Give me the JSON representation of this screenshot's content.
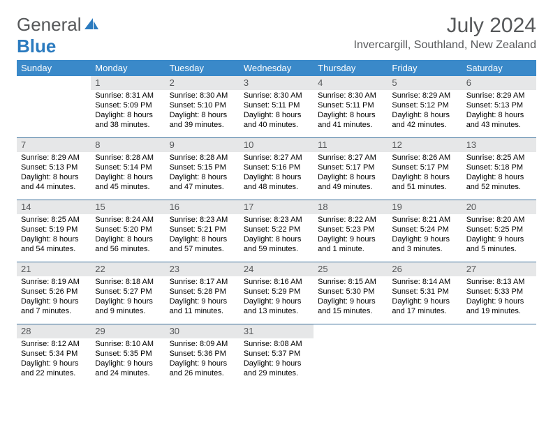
{
  "logo": {
    "left": "General",
    "right": "Blue"
  },
  "title": "July 2024",
  "subtitle": "Invercargill, Southland, New Zealand",
  "day_headers": [
    "Sunday",
    "Monday",
    "Tuesday",
    "Wednesday",
    "Thursday",
    "Friday",
    "Saturday"
  ],
  "colors": {
    "header_bg": "#3a89c9",
    "row_border": "#3a6f9a",
    "daynum_bg": "#e6e7e8",
    "text_gray": "#56585a",
    "logo_blue": "#2b7bbf"
  },
  "weeks": [
    [
      {
        "empty": true
      },
      {
        "num": "1",
        "sunrise": "8:31 AM",
        "sunset": "5:09 PM",
        "daylight": "8 hours and 38 minutes."
      },
      {
        "num": "2",
        "sunrise": "8:30 AM",
        "sunset": "5:10 PM",
        "daylight": "8 hours and 39 minutes."
      },
      {
        "num": "3",
        "sunrise": "8:30 AM",
        "sunset": "5:11 PM",
        "daylight": "8 hours and 40 minutes."
      },
      {
        "num": "4",
        "sunrise": "8:30 AM",
        "sunset": "5:11 PM",
        "daylight": "8 hours and 41 minutes."
      },
      {
        "num": "5",
        "sunrise": "8:29 AM",
        "sunset": "5:12 PM",
        "daylight": "8 hours and 42 minutes."
      },
      {
        "num": "6",
        "sunrise": "8:29 AM",
        "sunset": "5:13 PM",
        "daylight": "8 hours and 43 minutes."
      }
    ],
    [
      {
        "num": "7",
        "sunrise": "8:29 AM",
        "sunset": "5:13 PM",
        "daylight": "8 hours and 44 minutes."
      },
      {
        "num": "8",
        "sunrise": "8:28 AM",
        "sunset": "5:14 PM",
        "daylight": "8 hours and 45 minutes."
      },
      {
        "num": "9",
        "sunrise": "8:28 AM",
        "sunset": "5:15 PM",
        "daylight": "8 hours and 47 minutes."
      },
      {
        "num": "10",
        "sunrise": "8:27 AM",
        "sunset": "5:16 PM",
        "daylight": "8 hours and 48 minutes."
      },
      {
        "num": "11",
        "sunrise": "8:27 AM",
        "sunset": "5:17 PM",
        "daylight": "8 hours and 49 minutes."
      },
      {
        "num": "12",
        "sunrise": "8:26 AM",
        "sunset": "5:17 PM",
        "daylight": "8 hours and 51 minutes."
      },
      {
        "num": "13",
        "sunrise": "8:25 AM",
        "sunset": "5:18 PM",
        "daylight": "8 hours and 52 minutes."
      }
    ],
    [
      {
        "num": "14",
        "sunrise": "8:25 AM",
        "sunset": "5:19 PM",
        "daylight": "8 hours and 54 minutes."
      },
      {
        "num": "15",
        "sunrise": "8:24 AM",
        "sunset": "5:20 PM",
        "daylight": "8 hours and 56 minutes."
      },
      {
        "num": "16",
        "sunrise": "8:23 AM",
        "sunset": "5:21 PM",
        "daylight": "8 hours and 57 minutes."
      },
      {
        "num": "17",
        "sunrise": "8:23 AM",
        "sunset": "5:22 PM",
        "daylight": "8 hours and 59 minutes."
      },
      {
        "num": "18",
        "sunrise": "8:22 AM",
        "sunset": "5:23 PM",
        "daylight": "9 hours and 1 minute."
      },
      {
        "num": "19",
        "sunrise": "8:21 AM",
        "sunset": "5:24 PM",
        "daylight": "9 hours and 3 minutes."
      },
      {
        "num": "20",
        "sunrise": "8:20 AM",
        "sunset": "5:25 PM",
        "daylight": "9 hours and 5 minutes."
      }
    ],
    [
      {
        "num": "21",
        "sunrise": "8:19 AM",
        "sunset": "5:26 PM",
        "daylight": "9 hours and 7 minutes."
      },
      {
        "num": "22",
        "sunrise": "8:18 AM",
        "sunset": "5:27 PM",
        "daylight": "9 hours and 9 minutes."
      },
      {
        "num": "23",
        "sunrise": "8:17 AM",
        "sunset": "5:28 PM",
        "daylight": "9 hours and 11 minutes."
      },
      {
        "num": "24",
        "sunrise": "8:16 AM",
        "sunset": "5:29 PM",
        "daylight": "9 hours and 13 minutes."
      },
      {
        "num": "25",
        "sunrise": "8:15 AM",
        "sunset": "5:30 PM",
        "daylight": "9 hours and 15 minutes."
      },
      {
        "num": "26",
        "sunrise": "8:14 AM",
        "sunset": "5:31 PM",
        "daylight": "9 hours and 17 minutes."
      },
      {
        "num": "27",
        "sunrise": "8:13 AM",
        "sunset": "5:33 PM",
        "daylight": "9 hours and 19 minutes."
      }
    ],
    [
      {
        "num": "28",
        "sunrise": "8:12 AM",
        "sunset": "5:34 PM",
        "daylight": "9 hours and 22 minutes."
      },
      {
        "num": "29",
        "sunrise": "8:10 AM",
        "sunset": "5:35 PM",
        "daylight": "9 hours and 24 minutes."
      },
      {
        "num": "30",
        "sunrise": "8:09 AM",
        "sunset": "5:36 PM",
        "daylight": "9 hours and 26 minutes."
      },
      {
        "num": "31",
        "sunrise": "8:08 AM",
        "sunset": "5:37 PM",
        "daylight": "9 hours and 29 minutes."
      },
      {
        "empty": true
      },
      {
        "empty": true
      },
      {
        "empty": true
      }
    ]
  ]
}
